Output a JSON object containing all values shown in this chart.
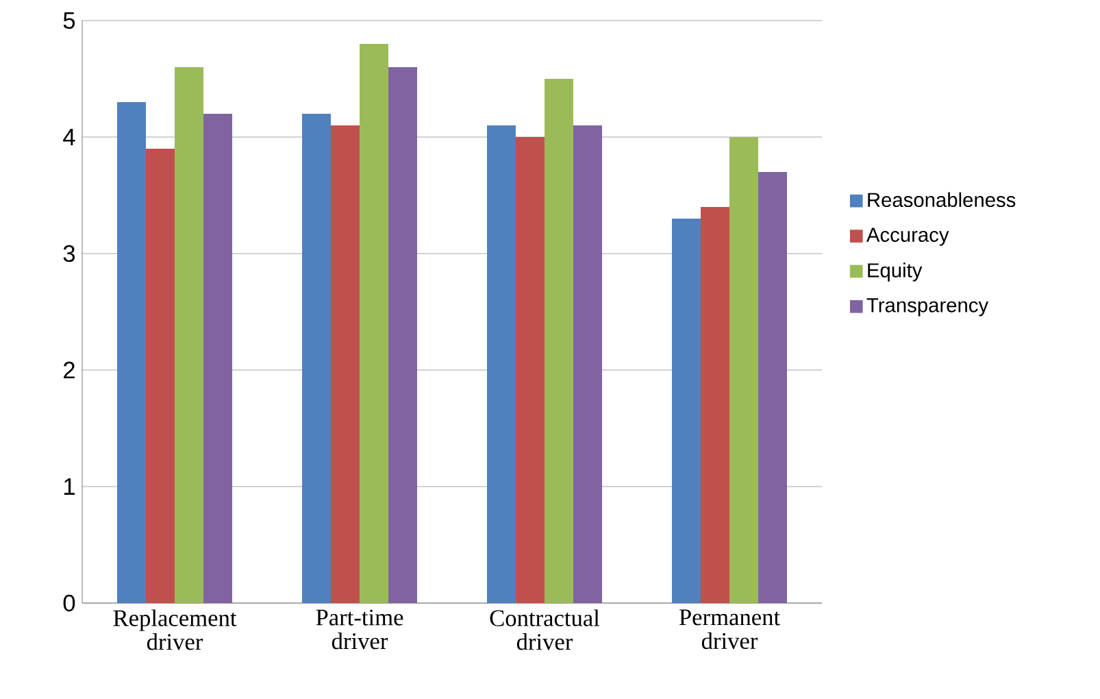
{
  "chart_data": {
    "type": "bar",
    "categories": [
      "Replacement driver",
      "Part-time driver",
      "Contractual driver",
      "Permanent driver"
    ],
    "series": [
      {
        "name": "Reasonableness",
        "color": "#4f81bd",
        "values": [
          4.3,
          4.2,
          4.1,
          3.3
        ]
      },
      {
        "name": "Accuracy",
        "color": "#c0504d",
        "values": [
          3.9,
          4.1,
          4.0,
          3.4
        ]
      },
      {
        "name": "Equity",
        "color": "#9bbb59",
        "values": [
          4.6,
          4.8,
          4.5,
          4.0
        ]
      },
      {
        "name": "Transparency",
        "color": "#8064a2",
        "values": [
          4.2,
          4.6,
          4.1,
          3.7
        ]
      }
    ],
    "ylim": [
      0,
      5
    ],
    "yticks": [
      0,
      1,
      2,
      3,
      4,
      5
    ],
    "grid": "y",
    "legend": "right"
  }
}
